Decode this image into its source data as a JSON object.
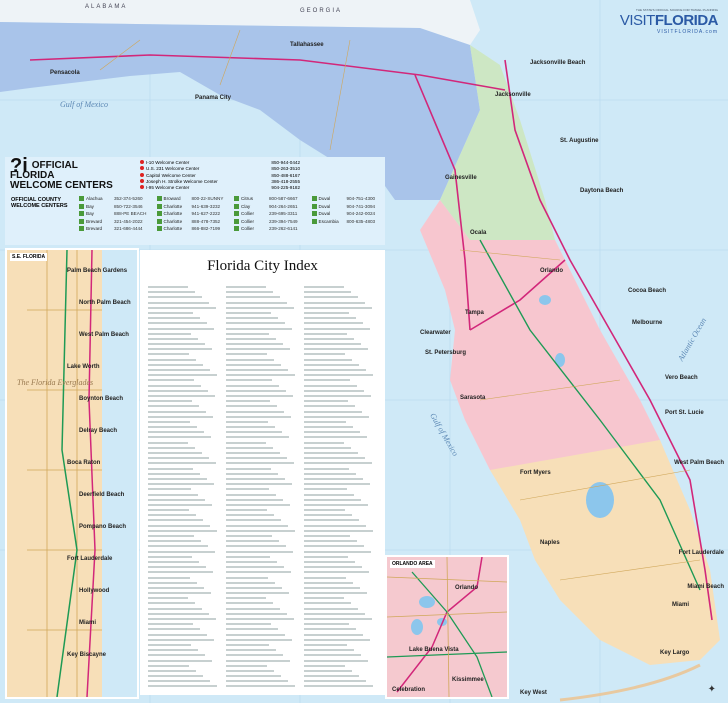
{
  "header": {
    "tagline": "THE STATE'S OFFICIAL SOURCE FOR TRAVEL PLANNING",
    "brand_light": "VISIT",
    "brand_bold": "FLORIDA",
    "url": "VISITFLORIDA.com"
  },
  "states": [
    "ALABAMA",
    "GEORGIA"
  ],
  "water_labels": [
    "Gulf of Mexico",
    "Gulf of Mexico",
    "Atlantic Ocean"
  ],
  "cities": [
    "Pensacola",
    "Panama City",
    "Tallahassee",
    "Jacksonville",
    "Jacksonville Beach",
    "St. Augustine",
    "Gainesville",
    "Ocala",
    "Daytona Beach",
    "Orlando",
    "Cocoa Beach",
    "Melbourne",
    "Tampa",
    "Clearwater",
    "St. Petersburg",
    "Sarasota",
    "Vero Beach",
    "Port St. Lucie",
    "Fort Myers",
    "Naples",
    "West Palm Beach",
    "Fort Lauderdale",
    "Miami",
    "Miami Beach",
    "Key Largo",
    "Key West"
  ],
  "welcome": {
    "title_line1": "OFFICIAL",
    "title_line2": "FLORIDA",
    "title_line3": "WELCOME CENTERS",
    "state_centers": [
      {
        "name": "I-10 Welcome Center",
        "phone": "850-944-0442"
      },
      {
        "name": "U.S. 231 Welcome Center",
        "phone": "850-263-3510"
      },
      {
        "name": "Capitol Welcome Center",
        "phone": "850-488-6167"
      },
      {
        "name": "Joseph H. Strolke Welcome Center",
        "phone": "386-418-2555"
      },
      {
        "name": "I-95 Welcome Center",
        "phone": "904-225-9182"
      }
    ],
    "county_title": "OFFICIAL COUNTY WELCOME CENTERS",
    "county_centers": [
      {
        "name": "Alachua",
        "phone": "352-374-5260"
      },
      {
        "name": "Bay",
        "phone": "850-722-3546"
      },
      {
        "name": "Bay",
        "phone": "888-PE BEACH"
      },
      {
        "name": "Brevard",
        "phone": "321-454-2022"
      },
      {
        "name": "Brevard",
        "phone": "321-686-4444"
      },
      {
        "name": "Broward",
        "phone": "800-22-SUNNY"
      },
      {
        "name": "Charlotte",
        "phone": "941-639-3232"
      },
      {
        "name": "Charlotte",
        "phone": "941-627-2222"
      },
      {
        "name": "Charlotte",
        "phone": "888-478-7352"
      },
      {
        "name": "Charlotte",
        "phone": "866-882-7199"
      },
      {
        "name": "Citrus",
        "phone": "800-587-6667"
      },
      {
        "name": "Clay",
        "phone": "904-264-2651"
      },
      {
        "name": "Collier",
        "phone": "239-695-3311"
      },
      {
        "name": "Collier",
        "phone": "239-394-7549"
      },
      {
        "name": "Collier",
        "phone": "239-262-6141"
      },
      {
        "name": "Duval",
        "phone": "904-751-4300"
      },
      {
        "name": "Duval",
        "phone": "904-741-3094"
      },
      {
        "name": "Duval",
        "phone": "904-242-0024"
      },
      {
        "name": "Escambia",
        "phone": "800-635-4803"
      }
    ]
  },
  "se_inset": {
    "title": "S.E. FLORIDA",
    "region_label": "The Florida Everglades",
    "cities": [
      "Palm Beach Gardens",
      "North Palm Beach",
      "West Palm Beach",
      "Lake Worth",
      "Boynton Beach",
      "Delray Beach",
      "Boca Raton",
      "Deerfield Beach",
      "Pompano Beach",
      "Fort Lauderdale",
      "Hollywood",
      "Miami",
      "Key Biscayne"
    ]
  },
  "index": {
    "title": "Florida City Index"
  },
  "orlando_inset": {
    "title": "ORLANDO AREA",
    "cities": [
      "Orlando",
      "Lake Buena Vista",
      "Kissimmee",
      "Celebration"
    ]
  },
  "colors": {
    "water": "#cfe9f7",
    "panhandle": "#a9c4ea",
    "north": "#cde7c4",
    "central": "#f7c6cf",
    "south": "#f7dfb8",
    "interstate": "#d2277a",
    "turnpike": "#1e9a55"
  }
}
